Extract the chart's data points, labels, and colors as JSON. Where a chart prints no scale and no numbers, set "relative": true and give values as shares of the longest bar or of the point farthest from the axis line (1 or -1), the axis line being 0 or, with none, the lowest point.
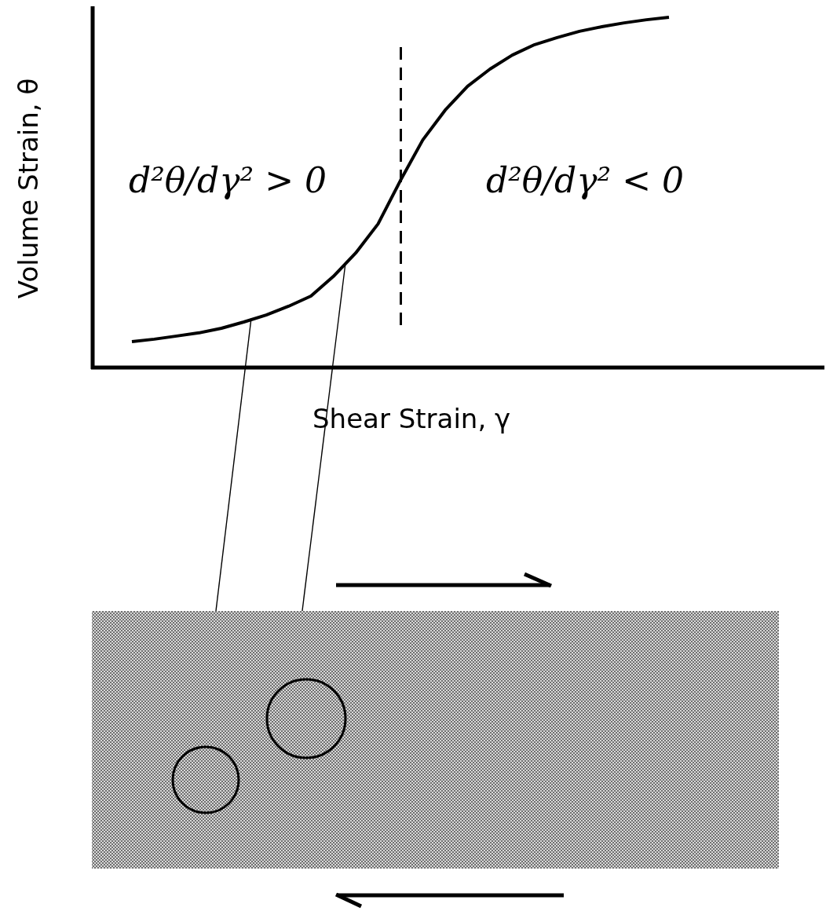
{
  "chart_data": {
    "type": "line",
    "relative": true,
    "xlabel": "Shear Strain, γ",
    "ylabel": "Volume Strain, θ",
    "categories": [
      null,
      null,
      null,
      null,
      null,
      null,
      null,
      null,
      null,
      null,
      null,
      null,
      null,
      null,
      null,
      null,
      null,
      null,
      null,
      null,
      null,
      null,
      null,
      null,
      null
    ],
    "series": [
      {
        "color": "#000000",
        "values": [
          0.074,
          0.081,
          0.09,
          0.099,
          0.112,
          0.13,
          0.15,
          0.175,
          0.204,
          0.26,
          0.327,
          0.41,
          0.534,
          0.65,
          0.735,
          0.803,
          0.852,
          0.892,
          0.922,
          0.942,
          0.96,
          0.973,
          0.984,
          0.993,
          1
        ]
      }
    ],
    "annotations": [
      "d²θ/dγ² > 0",
      "d²θ/dγ² < 0"
    ],
    "marker": "none"
  }
}
